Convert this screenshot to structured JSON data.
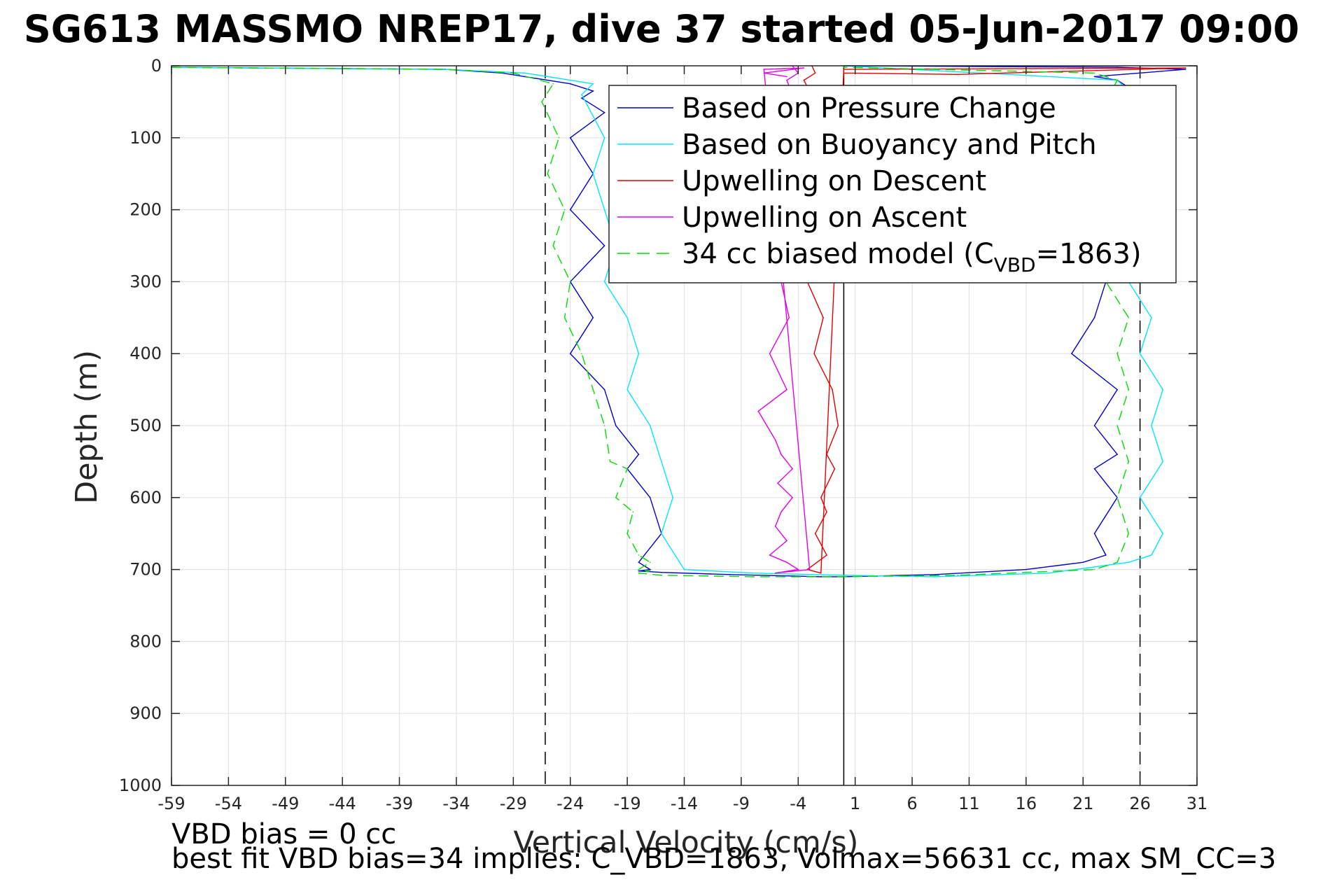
{
  "chart_data": {
    "type": "line",
    "title": "SG613 MASSMO NREP17, dive 37 started 05-Jun-2017 09:00",
    "xlabel": "Vertical Velocity (cm/s)",
    "ylabel": "Depth (m)",
    "xlim": [
      -59,
      31
    ],
    "ylim": [
      1000,
      0
    ],
    "y_reversed": true,
    "grid": true,
    "legend_position": "top-right",
    "x_ticks": [
      "-59",
      "-54",
      "-49",
      "-44",
      "-39",
      "-34",
      "-29",
      "-24",
      "-19",
      "-14",
      "-9",
      "-4",
      "1",
      "6",
      "11",
      "16",
      "21",
      "26",
      "31"
    ],
    "y_ticks": [
      "0",
      "100",
      "200",
      "300",
      "400",
      "500",
      "600",
      "700",
      "800",
      "900",
      "1000"
    ],
    "reference_lines": [
      {
        "x": -26.2,
        "style": "dashed",
        "color": "#000000"
      },
      {
        "x": 0,
        "style": "solid",
        "color": "#000000"
      },
      {
        "x": 26.0,
        "style": "dashed",
        "color": "#000000"
      }
    ],
    "legend": [
      {
        "label": "Based on Pressure Change",
        "color": "#0000cc",
        "dash": "solid"
      },
      {
        "label": "Based on Buoyancy and Pitch",
        "color": "#00e5ff",
        "dash": "solid"
      },
      {
        "label": "Upwelling on Descent",
        "color": "#e60000",
        "dash": "solid"
      },
      {
        "label": "Upwelling on Ascent",
        "color": "#e600e6",
        "dash": "solid"
      },
      {
        "label_main": "34 cc biased model (C",
        "label_sub": "VBD",
        "label_end": "=1863)",
        "color": "#00dd00",
        "dash": "dashed"
      }
    ],
    "series": [
      {
        "name": "Based on Pressure Change",
        "color": "#0000cc",
        "x": [
          -59,
          -35,
          -30,
          -28,
          -24,
          -22,
          -23,
          -21,
          -24,
          -22,
          -24,
          -21,
          -24,
          -22,
          -24,
          -21,
          -20,
          -18,
          -19,
          -17,
          -16,
          -18,
          -17,
          -18,
          -16,
          -10,
          -2,
          0,
          8,
          16,
          21,
          23,
          22,
          24,
          22,
          24,
          22,
          24,
          20,
          22,
          23,
          22,
          23,
          24,
          26,
          27,
          25,
          24,
          22,
          30,
          24,
          0
        ],
        "y": [
          2,
          5,
          10,
          15,
          25,
          35,
          45,
          65,
          100,
          150,
          200,
          250,
          300,
          350,
          400,
          450,
          500,
          540,
          560,
          600,
          650,
          690,
          700,
          702,
          704,
          707,
          710,
          710,
          707,
          700,
          690,
          680,
          650,
          600,
          560,
          540,
          500,
          450,
          400,
          350,
          300,
          250,
          200,
          150,
          100,
          50,
          30,
          20,
          15,
          5,
          2,
          0
        ]
      },
      {
        "name": "Based on Buoyancy and Pitch",
        "color": "#00e5ff",
        "x": [
          -59,
          -35,
          -28,
          -22,
          -23,
          -21,
          -22,
          -21,
          -20,
          -21,
          -19,
          -18,
          -19,
          -17,
          -16,
          -15,
          -16,
          -14,
          -8,
          0,
          8,
          18,
          25,
          27,
          28,
          26,
          28,
          27,
          28,
          26,
          27,
          25,
          27,
          28,
          26,
          24,
          0
        ],
        "y": [
          2,
          5,
          10,
          25,
          40,
          100,
          150,
          200,
          250,
          300,
          350,
          400,
          450,
          500,
          550,
          600,
          650,
          700,
          705,
          708,
          710,
          705,
          690,
          680,
          650,
          600,
          550,
          500,
          450,
          400,
          350,
          300,
          200,
          100,
          50,
          20,
          0
        ]
      },
      {
        "name": "Upwelling on Descent",
        "color": "#e60000",
        "x": [
          -2.8,
          -2.5,
          -3.5,
          -2.5,
          -3.0,
          -2.2,
          -3.2,
          -1.8,
          -2.6,
          -1.0,
          -0.5,
          -1.5,
          -0.8,
          -2.0,
          -1.5,
          -2.5,
          -1.5,
          -3.2,
          -2.0,
          0,
          30,
          10,
          0
        ],
        "y": [
          0,
          10,
          20,
          50,
          100,
          200,
          300,
          350,
          400,
          450,
          500,
          540,
          560,
          600,
          620,
          650,
          680,
          700,
          705,
          5,
          3,
          12,
          10
        ]
      },
      {
        "name": "Upwelling on Ascent",
        "color": "#e600e6",
        "x": [
          -4.5,
          -4.0,
          -5.0,
          -4.5,
          -5.5,
          -4.8,
          -6.5,
          -5.0,
          -7.5,
          -6.0,
          -5.5,
          -4.5,
          -5.8,
          -4.5,
          -5.5,
          -6.0,
          -5.0,
          -6.5,
          -5.0,
          -4.0,
          -6.0,
          -3.0,
          -7.0,
          -3.5,
          -7.0,
          -5.0
        ],
        "y": [
          0,
          10,
          20,
          40,
          300,
          350,
          400,
          450,
          480,
          520,
          540,
          560,
          580,
          600,
          620,
          640,
          660,
          680,
          690,
          700,
          705,
          700,
          5,
          3,
          10,
          15
        ]
      },
      {
        "name": "34 cc biased model (C_VBD=1863)",
        "color": "#00dd00",
        "dash": "dashed",
        "x": [
          -59,
          -35,
          -29,
          -25.5,
          -26.5,
          -25,
          -26,
          -24.5,
          -25.5,
          -24,
          -24.5,
          -23,
          -22,
          -21,
          -20.5,
          -19,
          -20,
          -18.5,
          -19,
          -18,
          -17,
          -18,
          -17,
          -18,
          -16,
          -8,
          0,
          10,
          22,
          24,
          25,
          24,
          25,
          24,
          25,
          24,
          25,
          23,
          24,
          22,
          23,
          24,
          22,
          0
        ],
        "y": [
          2,
          5,
          10,
          25,
          50,
          100,
          150,
          200,
          250,
          300,
          350,
          400,
          450,
          500,
          550,
          560,
          600,
          620,
          650,
          680,
          690,
          700,
          702,
          705,
          708,
          710,
          710,
          708,
          700,
          690,
          650,
          600,
          550,
          500,
          450,
          400,
          350,
          300,
          200,
          100,
          50,
          20,
          10,
          2
        ]
      }
    ]
  },
  "notes": {
    "line1": "VBD bias = 0 cc",
    "line2": "best fit VBD bias=34 implies: C_VBD=1863, Volmax=56631 cc, max SM_CC=3"
  }
}
